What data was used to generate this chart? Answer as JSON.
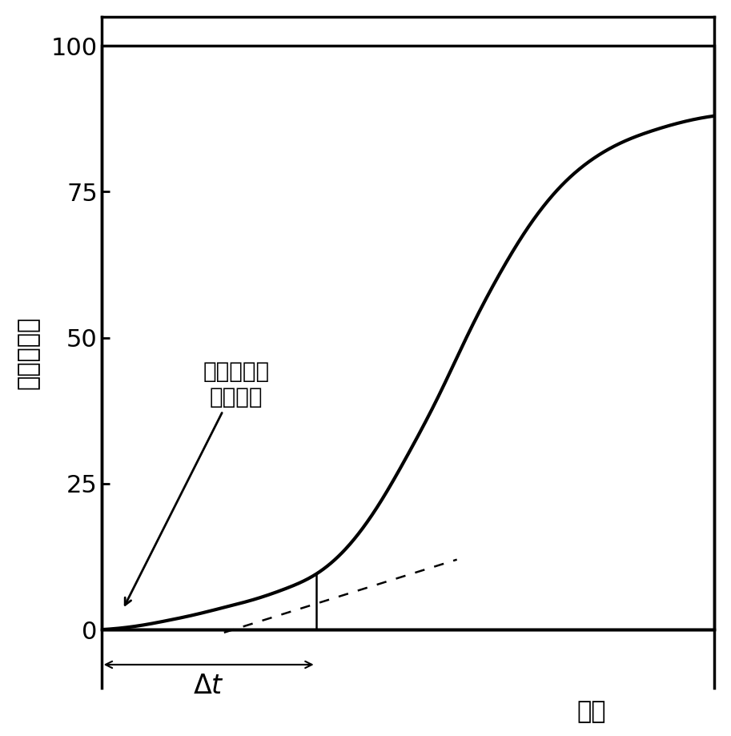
{
  "title": "",
  "ylabel": "单体转化率",
  "xlabel": "时间",
  "annotation_text": "加入亚硝基\n二硫酸盐",
  "delta_t_label": "$\\Delta t$",
  "ylim": [
    -10,
    105
  ],
  "xlim": [
    0,
    10
  ],
  "yticks": [
    0,
    25,
    50,
    75,
    100
  ],
  "background_color": "#ffffff",
  "line_color": "#000000",
  "dashed_color": "#000000",
  "arrow_color": "#000000",
  "delta_t_x_start": 0.0,
  "delta_t_x_end": 3.5,
  "inhibition_end_x": 3.5,
  "inhibition_end_y": 9.5,
  "curve_x": [
    0.0,
    0.2,
    0.5,
    0.8,
    1.0,
    1.5,
    2.0,
    2.5,
    3.0,
    3.5,
    4.0,
    4.5,
    5.0,
    5.5,
    6.0,
    6.5,
    7.0,
    7.5,
    8.0,
    8.5,
    9.0,
    9.5,
    10.0
  ],
  "curve_y": [
    0.0,
    0.15,
    0.5,
    1.0,
    1.4,
    2.5,
    3.8,
    5.2,
    7.0,
    9.5,
    14.0,
    21.0,
    30.0,
    40.0,
    51.0,
    61.0,
    69.5,
    76.0,
    80.5,
    83.5,
    85.5,
    87.0,
    88.0
  ]
}
